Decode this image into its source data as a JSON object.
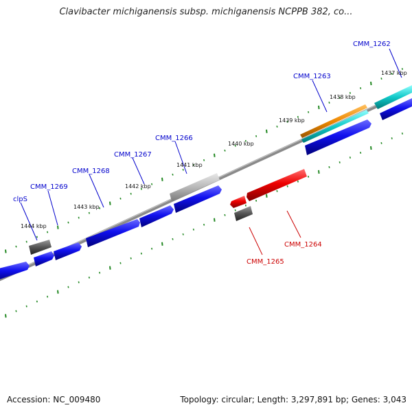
{
  "title": "Clavibacter michiganensis subsp. michiganensis NCPPB 382, co...",
  "accession_label": "Accession: NC_009480",
  "summary": "Topology: circular; Length: 3,297,891 bp; Genes: 3,043",
  "colors": {
    "forward_label": "#0000cc",
    "reverse_label": "#cc0000",
    "backbone": "#888888",
    "tick": "#228822"
  },
  "kbp_ticks": [
    {
      "label": "1437 kbp"
    },
    {
      "label": "1438 kbp"
    },
    {
      "label": "1439 kbp"
    },
    {
      "label": "1440 kbp"
    },
    {
      "label": "1441 kbp"
    },
    {
      "label": "1442 kbp"
    },
    {
      "label": "1443 kbp"
    },
    {
      "label": "1444 kbp"
    }
  ],
  "genes": [
    {
      "name": "CMM_1262",
      "strand": "forward",
      "type": "cds"
    },
    {
      "name": "CMM_1263",
      "strand": "forward",
      "type": "cds"
    },
    {
      "name": "CMM_1266",
      "strand": "forward",
      "type": "pseudo"
    },
    {
      "name": "CMM_1267",
      "strand": "forward",
      "type": "cds"
    },
    {
      "name": "CMM_1268",
      "strand": "forward",
      "type": "cds"
    },
    {
      "name": "CMM_1269",
      "strand": "forward",
      "type": "cds"
    },
    {
      "name": "clpS",
      "strand": "forward",
      "type": "cds"
    },
    {
      "name": "CMM_1264",
      "strand": "reverse",
      "type": "cds"
    },
    {
      "name": "CMM_1265",
      "strand": "reverse",
      "type": "cds"
    }
  ]
}
